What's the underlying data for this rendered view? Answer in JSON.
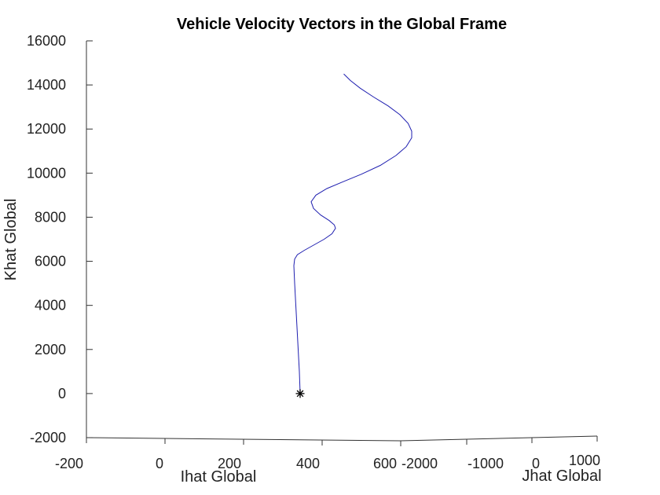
{
  "chart_data": {
    "type": "line",
    "title": "Vehicle Velocity Vectors in the Global Frame",
    "zlabel": "Khat Global",
    "xlabel": "Ihat Global",
    "ylabel": "Jhat Global",
    "zlim": [
      -2000,
      16000
    ],
    "z_ticks": [
      "-2000",
      "0",
      "2000",
      "4000",
      "6000",
      "8000",
      "10000",
      "12000",
      "14000",
      "16000"
    ],
    "x_ticks": [
      "-200",
      "0",
      "200",
      "400",
      "600"
    ],
    "y_ticks": [
      "-2000",
      "-1000",
      "0",
      "1000"
    ],
    "grid": false,
    "start_marker": "asterisk",
    "series": [
      {
        "color": "#1f1fb0",
        "points": [
          {
            "v": 344,
            "k": 0
          },
          {
            "v": 342,
            "k": 1000
          },
          {
            "v": 339,
            "k": 2000
          },
          {
            "v": 336,
            "k": 3000
          },
          {
            "v": 333,
            "k": 4000
          },
          {
            "v": 330,
            "k": 5000
          },
          {
            "v": 328,
            "k": 5800
          },
          {
            "v": 330,
            "k": 6100
          },
          {
            "v": 337,
            "k": 6300
          },
          {
            "v": 355,
            "k": 6500
          },
          {
            "v": 380,
            "k": 6750
          },
          {
            "v": 405,
            "k": 7000
          },
          {
            "v": 425,
            "k": 7250
          },
          {
            "v": 434,
            "k": 7500
          },
          {
            "v": 431,
            "k": 7650
          },
          {
            "v": 418,
            "k": 7850
          },
          {
            "v": 396,
            "k": 8100
          },
          {
            "v": 378,
            "k": 8400
          },
          {
            "v": 372,
            "k": 8700
          },
          {
            "v": 384,
            "k": 9000
          },
          {
            "v": 412,
            "k": 9300
          },
          {
            "v": 452,
            "k": 9600
          },
          {
            "v": 500,
            "k": 9950
          },
          {
            "v": 548,
            "k": 10350
          },
          {
            "v": 588,
            "k": 10800
          },
          {
            "v": 614,
            "k": 11200
          },
          {
            "v": 628,
            "k": 11600
          },
          {
            "v": 628,
            "k": 11900
          },
          {
            "v": 619,
            "k": 12250
          },
          {
            "v": 598,
            "k": 12650
          },
          {
            "v": 568,
            "k": 13050
          },
          {
            "v": 531,
            "k": 13450
          },
          {
            "v": 497,
            "k": 13850
          },
          {
            "v": 472,
            "k": 14200
          },
          {
            "v": 455,
            "k": 14500
          }
        ]
      }
    ]
  }
}
